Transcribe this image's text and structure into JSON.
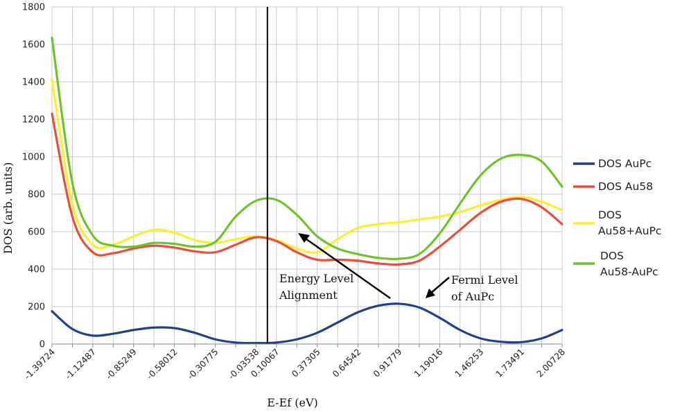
{
  "chart_data": {
    "type": "line",
    "xlabel": "E-Ef (eV)",
    "ylabel": "DOS (arb. units)",
    "ylim": [
      0,
      1800
    ],
    "yticks": [
      "0",
      "200",
      "400",
      "600",
      "800",
      "1000",
      "1200",
      "1400",
      "1600",
      "1800"
    ],
    "grid": true,
    "legend_position": "right",
    "categories": [
      "-1.39724",
      "-1.12487",
      "-0.85249",
      "-0.58012",
      "-0.30775",
      "-0.03538",
      "0.10067",
      "0.37305",
      "0.64542",
      "0.91779",
      "1.19016",
      "1.46253",
      "1.73491",
      "2.00728"
    ],
    "x": [
      -1.39724,
      -1.26106,
      -1.12487,
      -0.98868,
      -0.85249,
      -0.71631,
      -0.58012,
      -0.44394,
      -0.30775,
      -0.17156,
      -0.03538,
      0.10067,
      0.23686,
      0.37305,
      0.50924,
      0.64542,
      0.78161,
      0.91779,
      1.05398,
      1.19016,
      1.32635,
      1.46253,
      1.59872,
      1.73491,
      1.8711,
      2.00728
    ],
    "fermi_line_x": 0.10067,
    "series": [
      {
        "name": "DOS AuPc",
        "color": "#1f3f8f",
        "values": [
          175,
          80,
          45,
          55,
          75,
          88,
          85,
          60,
          25,
          8,
          5,
          8,
          25,
          60,
          115,
          170,
          205,
          215,
          195,
          140,
          75,
          30,
          12,
          10,
          30,
          75
        ]
      },
      {
        "name": "DOS Au58",
        "color": "#ee4b3a",
        "values": [
          1230,
          680,
          490,
          485,
          510,
          525,
          515,
          495,
          490,
          530,
          570,
          550,
          490,
          450,
          450,
          445,
          430,
          425,
          445,
          520,
          610,
          700,
          760,
          775,
          730,
          640
        ]
      },
      {
        "name": "DOS Au58+AuPc",
        "color": "#ffee2e",
        "values": [
          1410,
          750,
          530,
          530,
          575,
          610,
          595,
          555,
          540,
          560,
          575,
          555,
          510,
          490,
          560,
          620,
          640,
          650,
          665,
          680,
          705,
          740,
          770,
          785,
          760,
          715
        ]
      },
      {
        "name": "DOS Au58-AuPc",
        "color": "#6cc42a",
        "values": [
          1635,
          860,
          580,
          525,
          520,
          540,
          535,
          520,
          545,
          680,
          765,
          770,
          690,
          575,
          510,
          480,
          460,
          455,
          480,
          590,
          750,
          900,
          990,
          1010,
          975,
          840
        ]
      }
    ],
    "annotations": [
      {
        "text": [
          "Energy Level",
          "Alignment"
        ]
      },
      {
        "text": [
          "Fermi Level",
          "of AuPc"
        ]
      }
    ]
  }
}
